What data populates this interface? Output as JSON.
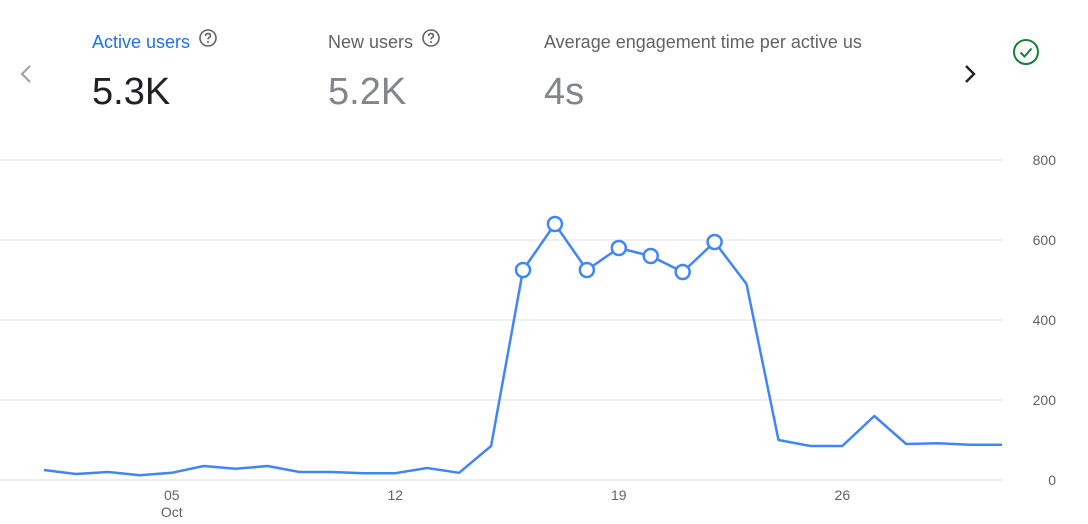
{
  "metrics": [
    {
      "label": "Active users",
      "value": "5.3K",
      "active": true
    },
    {
      "label": "New users",
      "value": "5.2K",
      "active": false
    },
    {
      "label": "Average engagement time per active us",
      "value": "4s",
      "active": false
    }
  ],
  "icons": {
    "prev": "chevron-left-icon",
    "next": "chevron-right-icon",
    "help": "help-circle-icon",
    "status": "check-circle-icon"
  },
  "colors": {
    "accent": "#1a73e8",
    "line": "#4285f4",
    "status_green": "#188038",
    "grid": "#e0e0e0"
  },
  "chart_data": {
    "type": "line",
    "title": "",
    "xlabel": "",
    "ylabel": "",
    "ylim": [
      0,
      800
    ],
    "y_ticks": [
      0,
      200,
      400,
      600,
      800
    ],
    "y_axis_position": "right",
    "grid": true,
    "x_ticks": [
      {
        "day": 5,
        "label": "05",
        "sublabel": "Oct"
      },
      {
        "day": 12,
        "label": "12",
        "sublabel": ""
      },
      {
        "day": 19,
        "label": "19",
        "sublabel": ""
      },
      {
        "day": 26,
        "label": "26",
        "sublabel": ""
      }
    ],
    "series": [
      {
        "x": [
          1,
          2,
          3,
          4,
          5,
          6,
          7,
          8,
          9,
          10,
          11,
          12,
          13,
          14,
          15,
          16,
          17,
          18,
          19,
          20,
          21,
          22,
          23,
          24,
          25,
          26,
          27,
          28,
          29,
          30,
          31
        ],
        "values": [
          25,
          15,
          20,
          12,
          18,
          35,
          28,
          35,
          20,
          20,
          17,
          17,
          30,
          18,
          85,
          525,
          640,
          525,
          580,
          560,
          520,
          595,
          490,
          100,
          85,
          85,
          160,
          90,
          92,
          88,
          88
        ],
        "markers_on": [
          16,
          17,
          18,
          19,
          20,
          21,
          22
        ]
      }
    ]
  }
}
